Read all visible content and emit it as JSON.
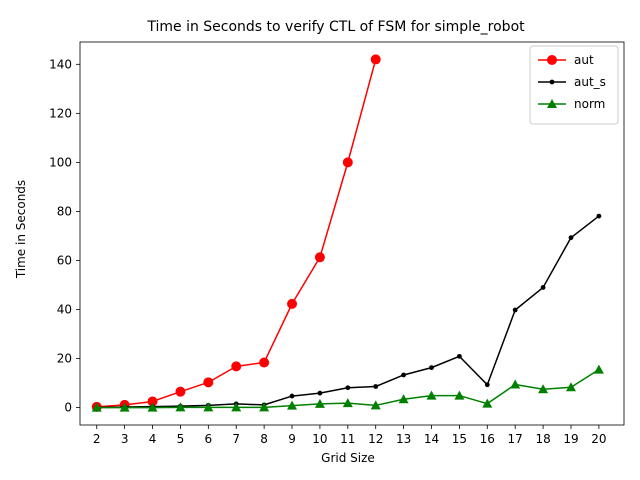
{
  "chart_data": {
    "type": "line",
    "title": "Time in Seconds to verify CTL of FSM for simple_robot",
    "xlabel": "Grid Size",
    "ylabel": "Time in Seconds",
    "x": [
      2,
      3,
      4,
      5,
      6,
      7,
      8,
      9,
      10,
      11,
      12,
      13,
      14,
      15,
      16,
      17,
      18,
      19,
      20
    ],
    "xlim": [
      1.4,
      20.9
    ],
    "ylim": [
      -7.1,
      149.1
    ],
    "yticks": [
      0,
      20,
      40,
      60,
      80,
      100,
      120,
      140
    ],
    "grid": false,
    "legend_position": "upper right",
    "series": [
      {
        "name": "aut",
        "color": "#ff0000",
        "marker": "circle",
        "x": [
          2,
          3,
          4,
          5,
          6,
          7,
          8,
          9,
          10,
          11,
          12
        ],
        "values": [
          0.3,
          1.1,
          2.5,
          6.5,
          10.3,
          16.8,
          18.4,
          42.3,
          61.3,
          100.0,
          142.0
        ]
      },
      {
        "name": "aut_s",
        "color": "#000000",
        "marker": "dot",
        "x": [
          2,
          3,
          4,
          5,
          6,
          7,
          8,
          9,
          10,
          11,
          12,
          13,
          14,
          15,
          16,
          17,
          18,
          19,
          20
        ],
        "values": [
          0.1,
          0.2,
          0.4,
          0.6,
          0.9,
          1.5,
          1.1,
          4.7,
          5.9,
          8.1,
          8.6,
          13.3,
          16.3,
          20.9,
          9.3,
          39.8,
          49.0,
          69.3,
          78.1
        ]
      },
      {
        "name": "norm",
        "color": "#008000",
        "marker": "triangle",
        "x": [
          2,
          3,
          4,
          5,
          6,
          7,
          8,
          9,
          10,
          11,
          12,
          13,
          14,
          15,
          16,
          17,
          18,
          19,
          20
        ],
        "values": [
          0.0,
          0.0,
          0.0,
          0.1,
          0.1,
          0.1,
          0.1,
          0.8,
          1.5,
          1.8,
          0.9,
          3.4,
          4.9,
          4.9,
          1.6,
          9.4,
          7.5,
          8.3,
          15.5
        ]
      }
    ]
  }
}
